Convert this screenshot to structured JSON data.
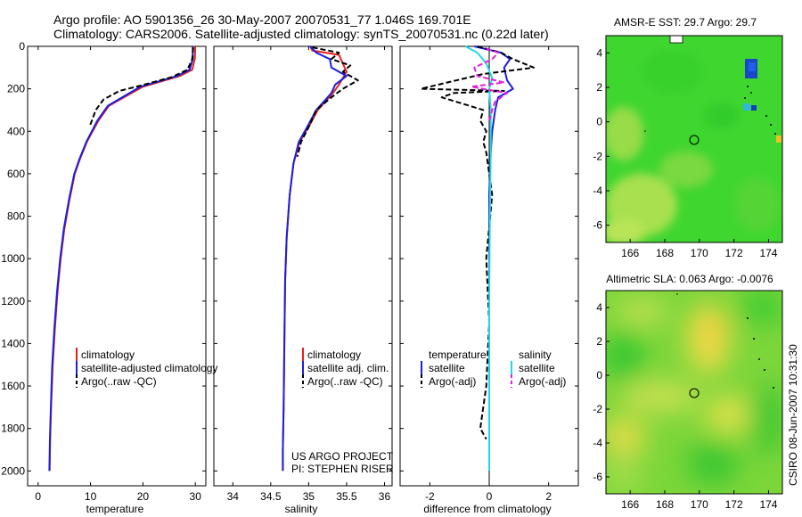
{
  "header": {
    "line1": "Argo profile: AO 5901356_26 30-May-2007 20070531_77 1.046S 169.701E",
    "line2": "Climatology: CARS2006. Satellite-adjusted climatology: synTS_20070531.nc (0.22d later)"
  },
  "footer_project": "US ARGO PROJECT",
  "footer_pi": "PI: STEPHEN RISER",
  "stamp": "CSIRO 08-Jun-2007 10:31:30",
  "colors": {
    "climatology": "#e8201a",
    "satellite": "#1a20e0",
    "argo": "#000000",
    "sal_satellite": "#22d8e8",
    "sal_argo": "#e020e0"
  },
  "chart_data": [
    {
      "type": "line",
      "id": "temperature",
      "xlabel": "temperature",
      "xlim": [
        -2,
        32
      ],
      "xticks": [
        0,
        10,
        20,
        30
      ],
      "ylim": [
        2070,
        0
      ],
      "yticks": [
        0,
        200,
        400,
        600,
        800,
        1000,
        1200,
        1400,
        1600,
        1800,
        2000
      ],
      "legend": [
        "climatology",
        "satellite-adjusted climatology",
        "Argo(..raw -QC)"
      ],
      "series": [
        {
          "name": "climatology",
          "x": [
            30.0,
            29.9,
            29.4,
            27.0,
            20.0,
            13.5,
            11.5,
            9.3,
            8.0,
            7.0,
            6.0,
            5.0,
            4.3,
            3.7,
            3.2,
            2.8,
            2.5,
            2.3,
            2.2
          ],
          "y": [
            0,
            60,
            110,
            140,
            190,
            280,
            350,
            450,
            530,
            600,
            720,
            860,
            1000,
            1160,
            1330,
            1500,
            1680,
            1850,
            2000
          ]
        },
        {
          "name": "satellite-adjusted climatology",
          "x": [
            29.5,
            29.5,
            28.9,
            26.5,
            19.5,
            13.3,
            11.3,
            9.2,
            7.9,
            6.9,
            5.9,
            4.9,
            4.2,
            3.6,
            3.1,
            2.7,
            2.45,
            2.25,
            2.15
          ],
          "y": [
            0,
            60,
            110,
            140,
            190,
            280,
            350,
            450,
            530,
            600,
            720,
            860,
            1000,
            1160,
            1330,
            1500,
            1680,
            1850,
            2000
          ]
        },
        {
          "name": "Argo(..raw -QC)",
          "x": [
            29.6,
            29.4,
            28.5,
            25.5,
            19.5,
            15.5,
            14.0,
            12.5,
            11.0,
            9.8
          ],
          "y": [
            5,
            60,
            110,
            145,
            185,
            210,
            230,
            250,
            300,
            380
          ]
        }
      ]
    },
    {
      "type": "line",
      "id": "salinity",
      "xlabel": "salinity",
      "xlim": [
        33.75,
        36.1
      ],
      "xticks": [
        34,
        34.5,
        35,
        35.5,
        36
      ],
      "ylim": [
        2070,
        0
      ],
      "legend": [
        "climatology",
        "satellite adj. clim.",
        "Argo(..raw -QC)"
      ],
      "series": [
        {
          "name": "climatology",
          "x": [
            35.02,
            35.05,
            35.4,
            35.45,
            35.5,
            35.4,
            35.32,
            35.12,
            35.0,
            34.88,
            34.8,
            34.75,
            34.71,
            34.69,
            34.68,
            34.67,
            34.66,
            34.66
          ],
          "y": [
            0,
            20,
            40,
            80,
            120,
            180,
            220,
            300,
            380,
            450,
            550,
            700,
            900,
            1100,
            1400,
            1700,
            1900,
            2000
          ]
        },
        {
          "name": "satellite adj. clim.",
          "x": [
            35.02,
            35.1,
            35.28,
            35.3,
            35.5,
            35.35,
            35.3,
            35.1,
            34.98,
            34.87,
            34.8,
            34.75,
            34.71,
            34.69,
            34.68,
            34.67,
            34.66,
            34.66
          ],
          "y": [
            0,
            30,
            60,
            100,
            140,
            180,
            220,
            300,
            380,
            450,
            550,
            700,
            900,
            1100,
            1400,
            1700,
            1900,
            2000
          ]
        },
        {
          "name": "Argo(..raw -QC)",
          "x": [
            35.05,
            35.4,
            35.3,
            35.55,
            35.45,
            35.65,
            35.45,
            35.3,
            35.1,
            35.0,
            34.9,
            34.85
          ],
          "y": [
            5,
            30,
            60,
            90,
            120,
            160,
            200,
            240,
            300,
            380,
            450,
            520
          ]
        }
      ]
    },
    {
      "type": "line",
      "id": "difference",
      "xlabel": "difference from climatology",
      "xlim": [
        -3,
        3
      ],
      "xticks": [
        -2,
        0,
        2
      ],
      "ylim": [
        2070,
        0
      ],
      "legend": [
        "temperature",
        "satellite",
        "Argo(-adj)",
        "salinity",
        "satellite",
        "Argo(-adj)"
      ],
      "series": [
        {
          "name": "temperature satellite",
          "x": [
            -0.5,
            0.4,
            0.7,
            0.5,
            0.6,
            0.8,
            0.3,
            0.2,
            0.1,
            0.05,
            0,
            0,
            0,
            0,
            0,
            0
          ],
          "y": [
            0,
            30,
            60,
            100,
            160,
            200,
            240,
            300,
            400,
            500,
            700,
            900,
            1200,
            1500,
            1800,
            2000
          ]
        },
        {
          "name": "temperature Argo(-adj)",
          "x": [
            -0.4,
            0.4,
            0.8,
            1.5,
            -0.2,
            -2.3,
            0.5,
            -1.2,
            -1.6,
            -0.2,
            -0.3,
            -0.1,
            -0.2,
            -0.1,
            0,
            0.1,
            -0.1,
            0,
            -0.1,
            -0.2,
            -0.3,
            -0.1
          ],
          "y": [
            0,
            30,
            60,
            100,
            130,
            200,
            210,
            220,
            240,
            300,
            350,
            400,
            450,
            500,
            600,
            700,
            1000,
            1300,
            1600,
            1700,
            1800,
            1850
          ]
        },
        {
          "name": "salinity satellite",
          "x": [
            -0.8,
            -0.4,
            -0.1,
            0.1,
            0.0,
            0.05,
            0.05,
            0.02,
            0.0,
            0.0,
            0.0
          ],
          "y": [
            0,
            30,
            80,
            150,
            200,
            300,
            500,
            800,
            1200,
            1600,
            2000
          ]
        },
        {
          "name": "salinity Argo(-adj)",
          "x": [
            -0.1,
            0.3,
            0.1,
            -0.5,
            -0.4,
            0.5,
            -0.6,
            0.6,
            0.2,
            0.1,
            0.0
          ],
          "y": [
            10,
            30,
            60,
            100,
            140,
            170,
            190,
            220,
            260,
            300,
            350
          ]
        }
      ]
    },
    {
      "type": "heatmap",
      "id": "amsre",
      "title": "AMSR-E SST: 29.7 Argo: 29.7",
      "xlim": [
        164.6,
        174.8
      ],
      "xticks": [
        166,
        168,
        170,
        172,
        174
      ],
      "ylim": [
        -7.0,
        5.0
      ],
      "yticks": [
        -6,
        -4,
        -2,
        0,
        2,
        4
      ],
      "marker": {
        "x": 169.7,
        "y": -1.05
      }
    },
    {
      "type": "heatmap",
      "id": "sla",
      "title": "Altimetric SLA: 0.063 Argo: -0.0076",
      "xlim": [
        164.6,
        174.8
      ],
      "xticks": [
        166,
        168,
        170,
        172,
        174
      ],
      "ylim": [
        -7.0,
        5.0
      ],
      "yticks": [
        -6,
        -4,
        -2,
        0,
        2,
        4
      ],
      "marker": {
        "x": 169.7,
        "y": -1.05
      }
    }
  ]
}
